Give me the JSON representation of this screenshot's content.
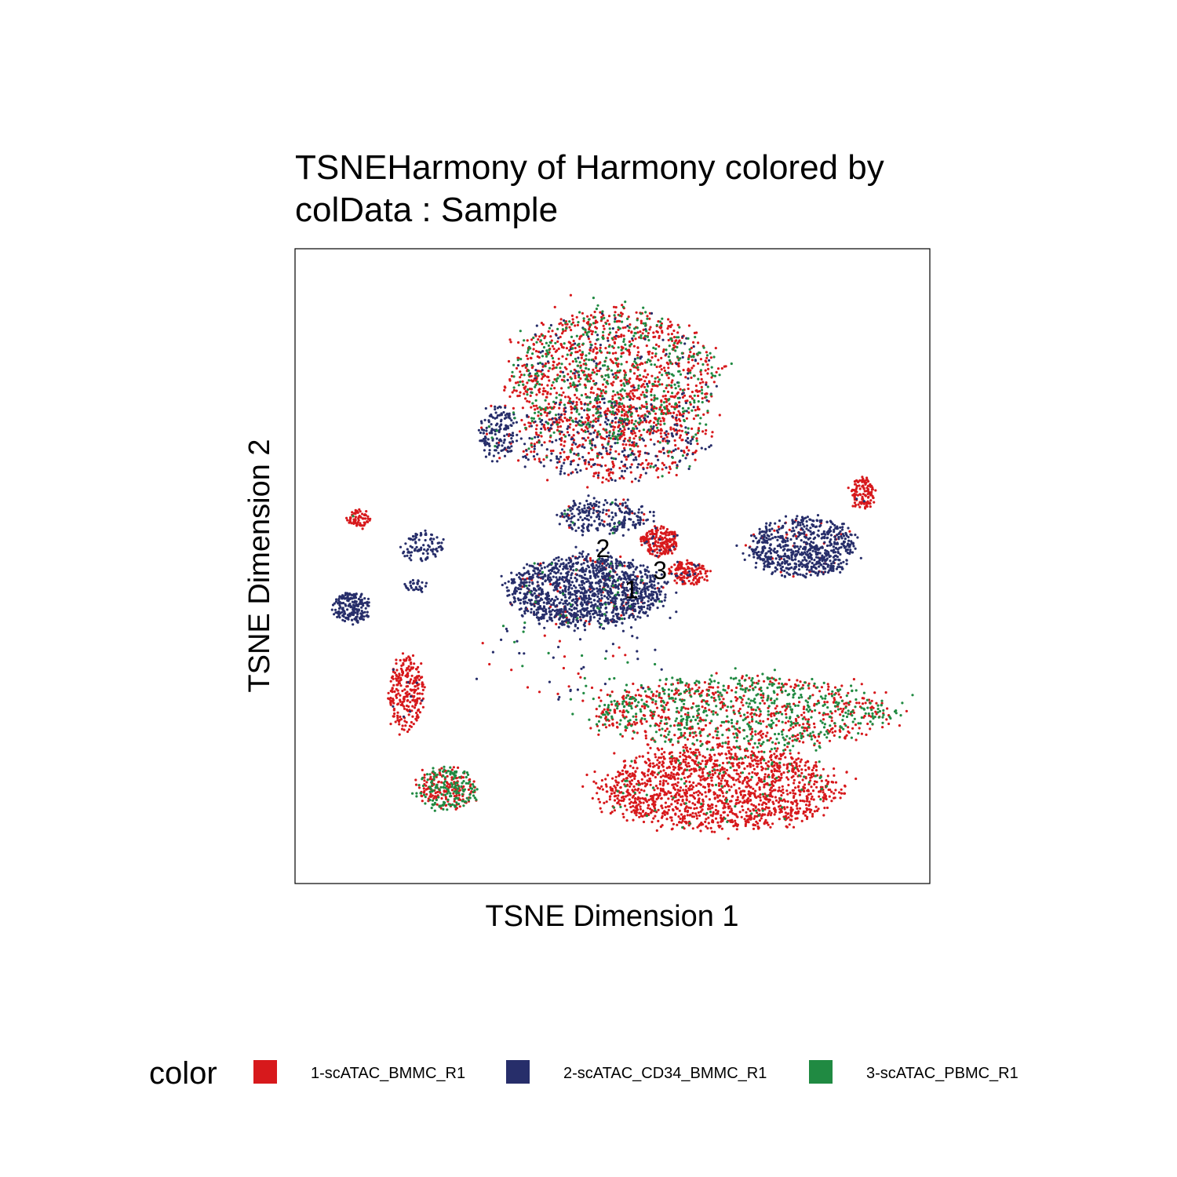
{
  "chart_data": {
    "type": "scatter",
    "title_lines": [
      "TSNEHarmony of Harmony  colored by",
      "colData :  Sample"
    ],
    "xlabel": "TSNE Dimension 1",
    "ylabel": "TSNE Dimension 2",
    "xlim": [
      0,
      100
    ],
    "ylim": [
      0,
      100
    ],
    "grid": false,
    "ticks": false,
    "legend_title": "color",
    "legend_position": "bottom",
    "series": [
      {
        "name": "1-scATAC_BMMC_R1",
        "color": "#d7191c"
      },
      {
        "name": "2-scATAC_CD34_BMMC_R1",
        "color": "#272e6a"
      },
      {
        "name": "3-scATAC_PBMC_R1",
        "color": "#208a42"
      }
    ],
    "cluster_labels": [
      {
        "text": "2",
        "x": 48.5,
        "y": 52.5
      },
      {
        "text": "1",
        "x": 53,
        "y": 46
      },
      {
        "text": "3",
        "x": 57.5,
        "y": 49
      }
    ],
    "clusters": [
      {
        "cx": 50,
        "cy": 80,
        "rx": 17,
        "ry": 11,
        "n": 1500,
        "mix": [
          0.6,
          0.08,
          0.32
        ]
      },
      {
        "cx": 50,
        "cy": 70,
        "rx": 16,
        "ry": 7,
        "n": 700,
        "mix": [
          0.6,
          0.32,
          0.08
        ]
      },
      {
        "cx": 32,
        "cy": 71,
        "rx": 3,
        "ry": 4.5,
        "n": 160,
        "mix": [
          0.02,
          0.96,
          0.02
        ]
      },
      {
        "cx": 46,
        "cy": 46,
        "rx": 13,
        "ry": 6,
        "n": 1400,
        "mix": [
          0.05,
          0.93,
          0.02
        ]
      },
      {
        "cx": 49,
        "cy": 58,
        "rx": 8,
        "ry": 3,
        "n": 250,
        "mix": [
          0.05,
          0.93,
          0.02
        ]
      },
      {
        "cx": 57.5,
        "cy": 54,
        "rx": 3,
        "ry": 2.5,
        "n": 200,
        "mix": [
          0.95,
          0.05,
          0
        ]
      },
      {
        "cx": 62,
        "cy": 49,
        "rx": 3.5,
        "ry": 2,
        "n": 140,
        "mix": [
          0.92,
          0.08,
          0
        ]
      },
      {
        "cx": 80,
        "cy": 53,
        "rx": 9,
        "ry": 5,
        "n": 700,
        "mix": [
          0.06,
          0.94,
          0
        ]
      },
      {
        "cx": 89.5,
        "cy": 61.5,
        "rx": 2,
        "ry": 2.5,
        "n": 120,
        "mix": [
          0.98,
          0.02,
          0
        ]
      },
      {
        "cx": 10,
        "cy": 57.5,
        "rx": 2,
        "ry": 1.5,
        "n": 70,
        "mix": [
          0.97,
          0,
          0.03
        ]
      },
      {
        "cx": 20,
        "cy": 53,
        "rx": 3.5,
        "ry": 2.5,
        "n": 90,
        "mix": [
          0,
          1,
          0
        ]
      },
      {
        "cx": 19,
        "cy": 47,
        "rx": 2,
        "ry": 1,
        "n": 30,
        "mix": [
          0,
          1,
          0
        ]
      },
      {
        "cx": 9,
        "cy": 43.5,
        "rx": 3,
        "ry": 2.5,
        "n": 200,
        "mix": [
          0,
          1,
          0
        ]
      },
      {
        "cx": 17.5,
        "cy": 30,
        "rx": 3,
        "ry": 6,
        "n": 260,
        "mix": [
          0.97,
          0.03,
          0
        ]
      },
      {
        "cx": 24,
        "cy": 15,
        "rx": 5,
        "ry": 3.5,
        "n": 330,
        "mix": [
          0.55,
          0,
          0.45
        ]
      },
      {
        "cx": 70,
        "cy": 27,
        "rx": 25,
        "ry": 6,
        "n": 1200,
        "mix": [
          0.52,
          0,
          0.48
        ]
      },
      {
        "cx": 67,
        "cy": 15,
        "rx": 20,
        "ry": 7,
        "n": 1600,
        "mix": [
          0.94,
          0,
          0.06
        ]
      },
      {
        "cx": 44,
        "cy": 36,
        "rx": 14,
        "ry": 8,
        "n": 70,
        "mix": [
          0.3,
          0.5,
          0.2
        ]
      }
    ]
  }
}
